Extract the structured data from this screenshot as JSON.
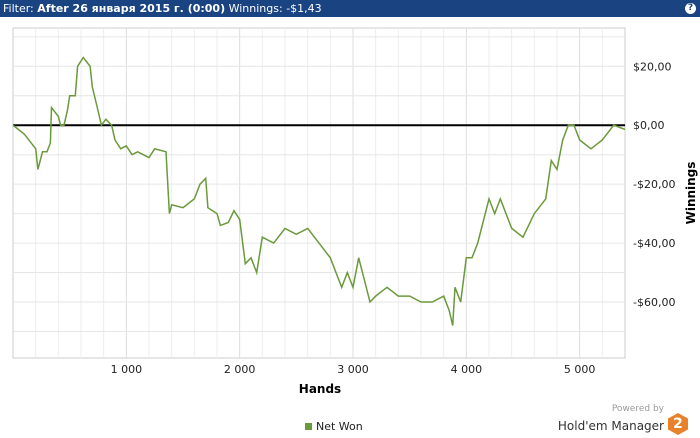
{
  "filter_bar": {
    "filter_label": "Filter:",
    "filter_value": "After 26 января 2015 г. (0:00)",
    "winnings_label": "Winnings:",
    "winnings_value": "-$1,43",
    "help_icon": "question-icon"
  },
  "branding": {
    "powered": "Powered by",
    "product": "Hold'em Manager",
    "logo_text": "2"
  },
  "chart_data": {
    "type": "line",
    "xlabel": "Hands",
    "ylabel": "Winnings",
    "xlim": [
      0,
      5400
    ],
    "ylim": [
      -79,
      33
    ],
    "xticks": [
      1000,
      2000,
      3000,
      4000,
      5000
    ],
    "xtick_labels": [
      "1 000",
      "2 000",
      "3 000",
      "4 000",
      "5 000"
    ],
    "yticks": [
      20,
      0,
      -20,
      -40,
      -60
    ],
    "ytick_labels": [
      "$20,00",
      "$0,00",
      "-$20,00",
      "-$40,00",
      "-$60,00"
    ],
    "grid": true,
    "legend": "bottom",
    "line_color": "#6a9a3a",
    "zero_line_color": "#000000",
    "series": [
      {
        "name": "Net Won",
        "x": [
          0,
          100,
          200,
          220,
          260,
          300,
          330,
          340,
          400,
          420,
          450,
          480,
          500,
          550,
          570,
          620,
          680,
          700,
          750,
          780,
          820,
          870,
          900,
          950,
          1000,
          1050,
          1100,
          1200,
          1250,
          1350,
          1380,
          1400,
          1500,
          1600,
          1650,
          1700,
          1720,
          1800,
          1830,
          1900,
          1950,
          2000,
          2050,
          2100,
          2150,
          2200,
          2300,
          2400,
          2500,
          2600,
          2700,
          2800,
          2850,
          2900,
          2950,
          3000,
          3050,
          3150,
          3200,
          3300,
          3400,
          3500,
          3600,
          3700,
          3800,
          3850,
          3880,
          3900,
          3950,
          4000,
          4050,
          4100,
          4200,
          4250,
          4300,
          4400,
          4500,
          4600,
          4700,
          4750,
          4800,
          4850,
          4900,
          4950,
          5000,
          5100,
          5200,
          5300,
          5400
        ],
        "y": [
          0,
          -3,
          -8,
          -15,
          -9,
          -9,
          -6,
          6,
          3,
          0,
          0,
          5,
          10,
          10,
          20,
          23,
          20,
          13,
          5,
          0,
          2,
          0,
          -5,
          -8,
          -7,
          -10,
          -9,
          -11,
          -8,
          -9,
          -30,
          -27,
          -28,
          -25,
          -20,
          -18,
          -28,
          -30,
          -34,
          -33,
          -29,
          -32,
          -47,
          -45,
          -50,
          -38,
          -40,
          -35,
          -37,
          -35,
          -40,
          -45,
          -50,
          -55,
          -50,
          -55,
          -45,
          -60,
          -58,
          -55,
          -58,
          -58,
          -60,
          -60,
          -58,
          -63,
          -68,
          -55,
          -60,
          -45,
          -45,
          -40,
          -25,
          -30,
          -25,
          -35,
          -38,
          -30,
          -25,
          -12,
          -15,
          -5,
          0,
          0,
          -5,
          -8,
          -5,
          0,
          -1.43
        ]
      }
    ]
  }
}
